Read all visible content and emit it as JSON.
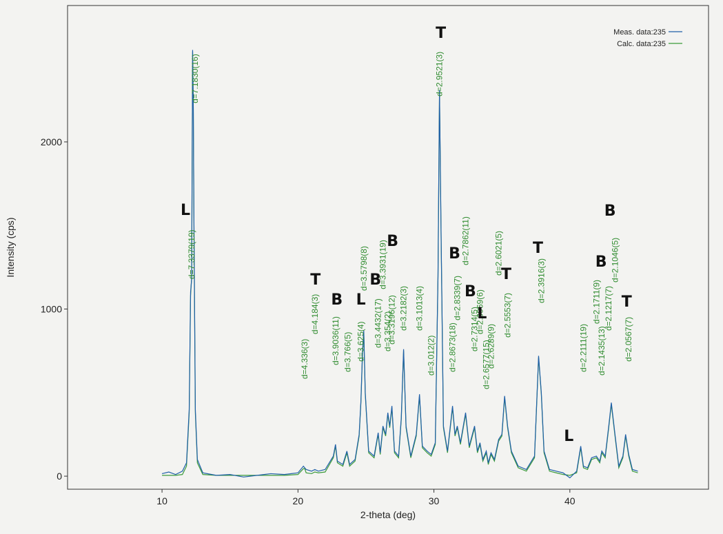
{
  "chart_data": {
    "type": "line",
    "xlabel": "2-theta (deg)",
    "ylabel": "Intensity (cps)",
    "xlim": [
      3.05,
      50.2
    ],
    "ylim": [
      -78,
      2816
    ],
    "xticks": [
      10,
      20,
      30,
      40
    ],
    "yticks": [
      0,
      1000,
      2000
    ],
    "grid": false,
    "legend": "upper right",
    "x": [
      10.0,
      10.5,
      11.0,
      11.5,
      11.8,
      12.0,
      12.1,
      12.18,
      12.25,
      12.3,
      12.35,
      12.45,
      12.6,
      13.0,
      14.0,
      15.0,
      16.0,
      17.0,
      18.0,
      19.0,
      20.0,
      20.4,
      20.5,
      20.6,
      21.0,
      21.24,
      21.5,
      22.0,
      22.6,
      22.76,
      22.9,
      23.3,
      23.6,
      23.8,
      24.2,
      24.5,
      24.63,
      24.75,
      24.84,
      24.95,
      25.2,
      25.6,
      25.9,
      26.05,
      26.25,
      26.45,
      26.61,
      26.75,
      26.91,
      27.1,
      27.4,
      27.6,
      27.77,
      27.95,
      28.3,
      28.7,
      28.94,
      29.15,
      29.5,
      29.8,
      30.1,
      30.3,
      30.41,
      30.52,
      30.7,
      31.0,
      31.37,
      31.55,
      31.72,
      31.95,
      32.33,
      32.6,
      32.99,
      33.2,
      33.39,
      33.6,
      33.85,
      34.0,
      34.2,
      34.45,
      34.76,
      35.0,
      35.2,
      35.42,
      35.7,
      36.2,
      36.8,
      37.4,
      37.7,
      37.9,
      38.1,
      38.5,
      39.0,
      39.5,
      40.0,
      40.5,
      40.8,
      41.0,
      41.3,
      41.6,
      41.95,
      42.2,
      42.35,
      42.6,
      42.86,
      43.05,
      43.32,
      43.6,
      43.9,
      44.1,
      44.33,
      44.6,
      45.0
    ],
    "series": [
      {
        "name": "Calc. data:235",
        "color": "#3a9a3a",
        "values": [
          5,
          5,
          5,
          10,
          60,
          380,
          1080,
          1190,
          2540,
          2210,
          1480,
          380,
          80,
          10,
          5,
          5,
          5,
          5,
          5,
          5,
          10,
          45,
          45,
          20,
          15,
          25,
          20,
          25,
          110,
          180,
          80,
          60,
          140,
          60,
          90,
          240,
          440,
          740,
          860,
          490,
          140,
          110,
          250,
          130,
          290,
          240,
          370,
          290,
          410,
          140,
          110,
          340,
          750,
          290,
          110,
          240,
          480,
          170,
          140,
          120,
          190,
          1190,
          2300,
          1490,
          290,
          140,
          410,
          240,
          290,
          190,
          370,
          170,
          290,
          140,
          190,
          90,
          140,
          70,
          130,
          90,
          210,
          240,
          470,
          290,
          140,
          50,
          30,
          110,
          710,
          490,
          140,
          30,
          20,
          10,
          5,
          20,
          170,
          50,
          40,
          100,
          110,
          80,
          140,
          110,
          290,
          430,
          240,
          50,
          110,
          240,
          120,
          30,
          20
        ]
      },
      {
        "name": "Meas. data:235",
        "color": "#1f5fa8",
        "values": [
          15,
          25,
          10,
          30,
          80,
          400,
          1100,
          1180,
          2550,
          2200,
          1500,
          400,
          100,
          20,
          5,
          10,
          -5,
          5,
          15,
          10,
          20,
          60,
          50,
          40,
          30,
          40,
          30,
          40,
          120,
          190,
          90,
          70,
          150,
          70,
          100,
          250,
          450,
          750,
          870,
          500,
          150,
          120,
          260,
          140,
          300,
          250,
          380,
          300,
          420,
          150,
          120,
          350,
          760,
          300,
          120,
          250,
          490,
          180,
          150,
          130,
          200,
          1200,
          2310,
          1500,
          300,
          150,
          420,
          250,
          300,
          200,
          380,
          180,
          300,
          150,
          200,
          100,
          150,
          80,
          140,
          100,
          220,
          250,
          480,
          300,
          150,
          60,
          40,
          120,
          720,
          500,
          150,
          40,
          30,
          20,
          -10,
          30,
          180,
          60,
          50,
          110,
          120,
          90,
          150,
          120,
          300,
          440,
          250,
          60,
          120,
          250,
          130,
          40,
          30
        ]
      }
    ],
    "peak_labels": [
      {
        "label": "d=7.3379(19)",
        "x": 12.18,
        "y": 1179
      },
      {
        "label": "d=7.1830(16)",
        "x": 12.43,
        "y": 2231
      },
      {
        "label": "d=4.336(3)",
        "x": 20.48,
        "y": 581
      },
      {
        "label": "d=4.184(3)",
        "x": 21.24,
        "y": 849
      },
      {
        "label": "d=3.9036(11)",
        "x": 22.76,
        "y": 664
      },
      {
        "label": "d=3.766(5)",
        "x": 23.67,
        "y": 623
      },
      {
        "label": "d=3.625(4)",
        "x": 24.63,
        "y": 685
      },
      {
        "label": "d=3.5798(8)",
        "x": 24.84,
        "y": 1109
      },
      {
        "label": "d=3.4432(17)",
        "x": 25.9,
        "y": 767
      },
      {
        "label": "d=3.3931(19)",
        "x": 26.25,
        "y": 1118
      },
      {
        "label": "d=3.354(2)",
        "x": 26.61,
        "y": 746
      },
      {
        "label": "d=3.3196(12)",
        "x": 26.91,
        "y": 788
      },
      {
        "label": "d=3.2182(3)",
        "x": 27.77,
        "y": 870
      },
      {
        "label": "d=3.1013(4)",
        "x": 28.94,
        "y": 870
      },
      {
        "label": "d=3.012(2)",
        "x": 29.8,
        "y": 602
      },
      {
        "label": "d=2.9521(3)",
        "x": 30.41,
        "y": 2272
      },
      {
        "label": "d=2.8673(18)",
        "x": 31.37,
        "y": 623
      },
      {
        "label": "d=2.8339(7)",
        "x": 31.72,
        "y": 932
      },
      {
        "label": "d=2.7862(11)",
        "x": 32.33,
        "y": 1262
      },
      {
        "label": "d=2.7314(5)",
        "x": 32.99,
        "y": 746
      },
      {
        "label": "d=2.6969(6)",
        "x": 33.39,
        "y": 849
      },
      {
        "label": "d=2.6577(15)",
        "x": 33.85,
        "y": 520
      },
      {
        "label": "d=2.6289(9)",
        "x": 34.2,
        "y": 643
      },
      {
        "label": "d=2.6021(5)",
        "x": 34.76,
        "y": 1200
      },
      {
        "label": "d=2.5553(7)",
        "x": 35.42,
        "y": 829
      },
      {
        "label": "d=2.3916(3)",
        "x": 37.9,
        "y": 1035
      },
      {
        "label": "d=2.2111(19)",
        "x": 40.99,
        "y": 623
      },
      {
        "label": "d=2.1711(9)",
        "x": 41.95,
        "y": 911
      },
      {
        "label": "d=2.1435(13)",
        "x": 42.35,
        "y": 602
      },
      {
        "label": "d=2.1217(7)",
        "x": 42.86,
        "y": 870
      },
      {
        "label": "d=2.1046(5)",
        "x": 43.32,
        "y": 1159
      },
      {
        "label": "d=2.0567(7)",
        "x": 44.33,
        "y": 685
      }
    ],
    "handwritten_marks": [
      {
        "label": "L",
        "x": 11.72,
        "y": 1563
      },
      {
        "label": "T",
        "x": 30.51,
        "y": 2623
      },
      {
        "label": "T",
        "x": 21.29,
        "y": 1146
      },
      {
        "label": "B",
        "x": 22.86,
        "y": 1027
      },
      {
        "label": "L",
        "x": 24.63,
        "y": 1027
      },
      {
        "label": "B",
        "x": 25.7,
        "y": 1146
      },
      {
        "label": "B",
        "x": 26.96,
        "y": 1377
      },
      {
        "label": "B",
        "x": 31.52,
        "y": 1303
      },
      {
        "label": "B",
        "x": 32.68,
        "y": 1076
      },
      {
        "label": "L",
        "x": 33.54,
        "y": 944
      },
      {
        "label": "T",
        "x": 35.32,
        "y": 1179
      },
      {
        "label": "T",
        "x": 37.65,
        "y": 1336
      },
      {
        "label": "L",
        "x": 39.92,
        "y": 210
      },
      {
        "label": "B",
        "x": 42.3,
        "y": 1254
      },
      {
        "label": "B",
        "x": 42.96,
        "y": 1559
      },
      {
        "label": "T",
        "x": 44.18,
        "y": 1014
      }
    ]
  }
}
